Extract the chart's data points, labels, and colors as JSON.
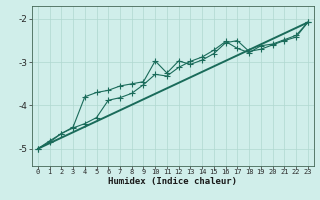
{
  "xlabel": "Humidex (Indice chaleur)",
  "xlim": [
    -0.5,
    23.5
  ],
  "ylim": [
    -5.4,
    -1.7
  ],
  "yticks": [
    -5,
    -4,
    -3,
    -2
  ],
  "xticks": [
    0,
    1,
    2,
    3,
    4,
    5,
    6,
    7,
    8,
    9,
    10,
    11,
    12,
    13,
    14,
    15,
    16,
    17,
    18,
    19,
    20,
    21,
    22,
    23
  ],
  "background_color": "#d0eeea",
  "grid_color": "#b0d8d0",
  "line_color": "#1a6b5a",
  "line1_y": [
    -5.0,
    -4.85,
    -4.65,
    -4.5,
    -3.8,
    -3.7,
    -3.65,
    -3.55,
    -3.5,
    -3.45,
    -2.97,
    -3.25,
    -2.97,
    -3.05,
    -2.95,
    -2.8,
    -2.55,
    -2.5,
    -2.75,
    -2.7,
    -2.6,
    -2.5,
    -2.42,
    -2.08
  ],
  "line2_y": [
    -5.0,
    -4.82,
    -4.65,
    -4.52,
    -4.42,
    -4.28,
    -3.88,
    -3.82,
    -3.72,
    -3.52,
    -3.28,
    -3.32,
    -3.12,
    -2.98,
    -2.88,
    -2.72,
    -2.52,
    -2.68,
    -2.78,
    -2.62,
    -2.58,
    -2.48,
    -2.38,
    -2.08
  ],
  "line3_y": [
    -5.0,
    -2.08
  ],
  "line3_x": [
    0,
    23
  ],
  "markersize": 2.5,
  "linewidth": 0.8,
  "linewidth_ref": 1.4
}
